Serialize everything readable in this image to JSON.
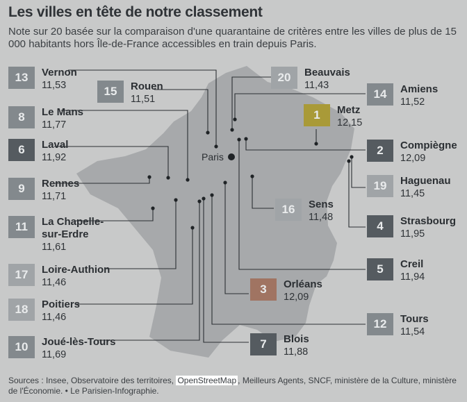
{
  "header": {
    "title": "Les villes en tête de notre classement",
    "subtitle": "Note sur 20 basée sur la comparaison d'une quarantaine de critères entre les villes de plus de 15 000 habitants hors Île-de-France accessibles en train depuis Paris."
  },
  "map": {
    "paris_label": "Paris",
    "colors": {
      "background": "#c8c9c9",
      "france_fill": "#a7a9ab",
      "rank_dark": "#555b60",
      "rank_mid": "#83898d",
      "rank_light": "#a0a4a7",
      "rank_first": "#a99a38",
      "rank_third": "#a07462",
      "line": "#2b2f33"
    },
    "cities": [
      {
        "rank": "13",
        "name": "Vernon",
        "score": "11,53",
        "tone": "rank_mid"
      },
      {
        "rank": "15",
        "name": "Rouen",
        "score": "11,51",
        "tone": "rank_mid"
      },
      {
        "rank": "8",
        "name": "Le Mans",
        "score": "11,77",
        "tone": "rank_mid"
      },
      {
        "rank": "6",
        "name": "Laval",
        "score": "11,92",
        "tone": "rank_dark"
      },
      {
        "rank": "9",
        "name": "Rennes",
        "score": "11,71",
        "tone": "rank_mid"
      },
      {
        "rank": "11",
        "name": "La Chapelle-sur-Erdre",
        "name_lines": [
          "La Chapelle-",
          "sur-Erdre"
        ],
        "score": "11,61",
        "tone": "rank_mid"
      },
      {
        "rank": "17",
        "name": "Loire-Authion",
        "score": "11,46",
        "tone": "rank_light"
      },
      {
        "rank": "18",
        "name": "Poitiers",
        "score": "11,46",
        "tone": "rank_light"
      },
      {
        "rank": "10",
        "name": "Joué-lès-Tours",
        "score": "11,69",
        "tone": "rank_mid"
      },
      {
        "rank": "20",
        "name": "Beauvais",
        "score": "11,43",
        "tone": "rank_light"
      },
      {
        "rank": "14",
        "name": "Amiens",
        "score": "11,52",
        "tone": "rank_mid"
      },
      {
        "rank": "1",
        "name": "Metz",
        "score": "12,15",
        "tone": "rank_first"
      },
      {
        "rank": "2",
        "name": "Compiègne",
        "score": "12,09",
        "tone": "rank_dark"
      },
      {
        "rank": "19",
        "name": "Haguenau",
        "score": "11,45",
        "tone": "rank_light"
      },
      {
        "rank": "16",
        "name": "Sens",
        "score": "11,48",
        "tone": "rank_light"
      },
      {
        "rank": "4",
        "name": "Strasbourg",
        "score": "11,95",
        "tone": "rank_dark"
      },
      {
        "rank": "5",
        "name": "Creil",
        "score": "11,94",
        "tone": "rank_dark"
      },
      {
        "rank": "3",
        "name": "Orléans",
        "score": "12,09",
        "tone": "rank_third"
      },
      {
        "rank": "12",
        "name": "Tours",
        "score": "11,54",
        "tone": "rank_mid"
      },
      {
        "rank": "7",
        "name": "Blois",
        "score": "11,88",
        "tone": "rank_dark"
      }
    ]
  },
  "footer": {
    "sources_prefix": "Sources : Insee, Observatoire des territoires, ",
    "sources_highlight": "OpenStreetMap",
    "sources_suffix": ", Meilleurs Agents, SNCF, ministère de la Culture, ministère de l'Économie. • Le Parisien-Infographie."
  }
}
